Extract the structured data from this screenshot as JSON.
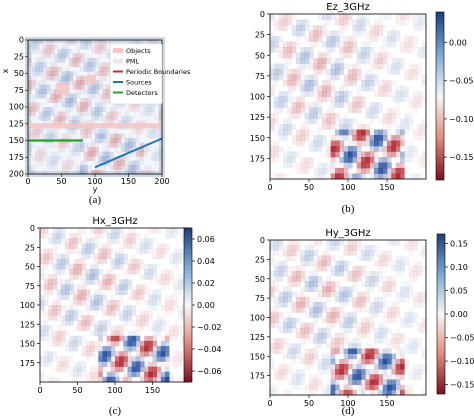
{
  "chart_data": [
    {
      "id": "a",
      "type": "heatmap",
      "title": "",
      "caption": "(a)",
      "xlabel": "y",
      "ylabel": "x",
      "xticks": [
        0,
        50,
        100,
        150,
        200
      ],
      "yticks": [
        0,
        25,
        50,
        75,
        100,
        125,
        150,
        175,
        200
      ],
      "xlim": [
        0,
        200
      ],
      "ylim": [
        200,
        0
      ],
      "legend_position": "top-right",
      "legend": [
        {
          "label": "Objects",
          "color": "#f6c4c4"
        },
        {
          "label": "PML",
          "color": "#e8e8e8"
        },
        {
          "label": "Periodic Boundaries",
          "color": "#d62728"
        },
        {
          "label": "Sources",
          "color": "#1f77b4"
        },
        {
          "label": "Detectors",
          "color": "#2ca02c"
        }
      ],
      "objects": [
        {
          "x": [
            42,
            62
          ],
          "y": [
            64,
            82
          ]
        },
        {
          "x": [
            88,
            102
          ],
          "y": [
            52,
            66
          ]
        },
        {
          "x": [
            0,
            200
          ],
          "y": [
            124,
            132
          ]
        }
      ],
      "sources": [
        {
          "x": [
            100,
            200
          ],
          "y": [
            190,
            147
          ]
        }
      ],
      "detectors": [
        {
          "x": [
            0,
            82
          ],
          "y": [
            150,
            150
          ]
        }
      ],
      "periodic_boundaries": []
    },
    {
      "id": "b",
      "type": "heatmap",
      "title": "Ez_3GHz",
      "caption": "(b)",
      "xticks": [
        0,
        50,
        100,
        150
      ],
      "yticks": [
        0,
        25,
        50,
        75,
        100,
        125,
        150,
        175
      ],
      "colorbar": {
        "ticks": [
          0.0,
          -0.05,
          -0.1,
          -0.15
        ],
        "range": [
          -0.18,
          0.04
        ],
        "tick_labels": [
          "0.00",
          "−0.05",
          "−0.10",
          "−0.15"
        ]
      }
    },
    {
      "id": "c",
      "type": "heatmap",
      "title": "Hx_3GHz",
      "caption": "(c)",
      "xticks": [
        0,
        50,
        100,
        150
      ],
      "yticks": [
        0,
        25,
        50,
        75,
        100,
        125,
        150,
        175
      ],
      "colorbar": {
        "ticks": [
          0.06,
          0.04,
          0.02,
          0.0,
          -0.02,
          -0.04,
          -0.06
        ],
        "range": [
          -0.07,
          0.07
        ],
        "tick_labels": [
          "0.06",
          "0.04",
          "0.02",
          "0.00",
          "−0.02",
          "−0.04",
          "−0.06"
        ]
      }
    },
    {
      "id": "d",
      "type": "heatmap",
      "title": "Hy_3GHz",
      "caption": "(d)",
      "xticks": [
        0,
        50,
        100,
        150
      ],
      "yticks": [
        0,
        25,
        50,
        75,
        100,
        125,
        150,
        175
      ],
      "colorbar": {
        "ticks": [
          0.15,
          0.1,
          0.05,
          0.0,
          -0.05,
          -0.1,
          -0.15
        ],
        "range": [
          -0.17,
          0.17
        ],
        "tick_labels": [
          "0.15",
          "0.10",
          "0.05",
          "0.00",
          "−0.05",
          "−0.10",
          "−0.15"
        ]
      }
    }
  ],
  "colors": {
    "positive": "#1f3f8f",
    "negative": "#8f1f2a",
    "neutral": "#ffffff"
  }
}
